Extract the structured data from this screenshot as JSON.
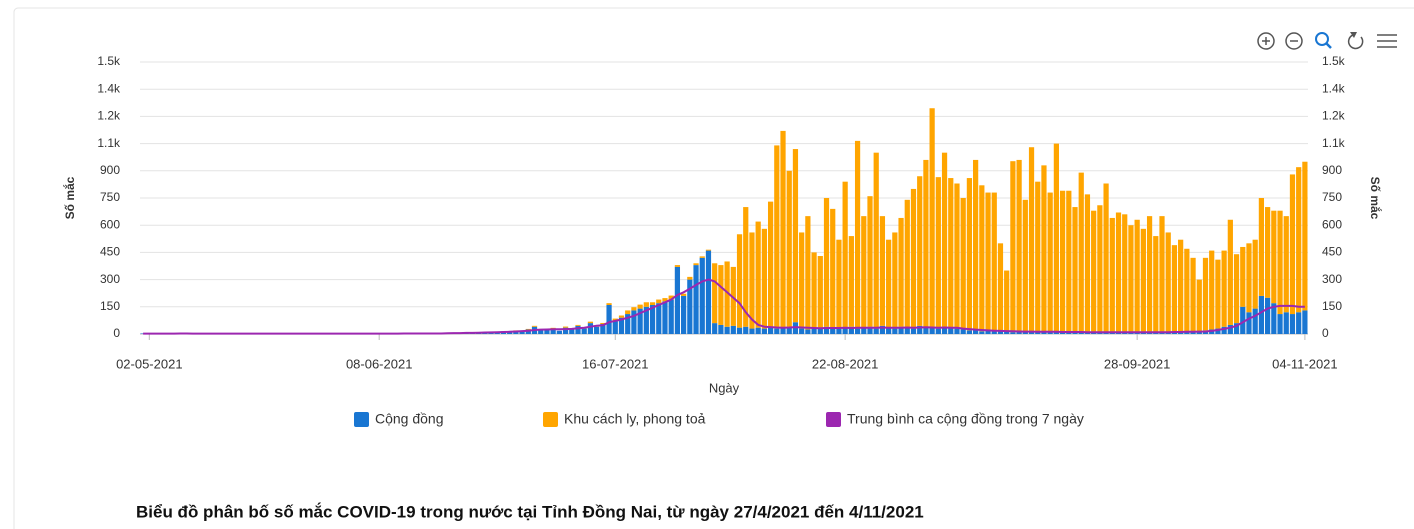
{
  "chart_data": {
    "type": "bar",
    "stacked": true,
    "caption": "Biểu đồ phân bố số mắc COVID-19 trong nước tại Tỉnh Đồng Nai, từ ngày 27/4/2021 đến 4/11/2021",
    "xlabel": "Ngày",
    "ylabel": "Số mắc",
    "y2label": "Số mắc",
    "categories": [
      null,
      "02-05-2021",
      null,
      null,
      null,
      null,
      null,
      null,
      null,
      null,
      null,
      null,
      null,
      null,
      null,
      null,
      null,
      null,
      null,
      null,
      null,
      null,
      null,
      null,
      null,
      null,
      null,
      null,
      null,
      null,
      null,
      null,
      null,
      null,
      null,
      null,
      null,
      null,
      "08-06-2021",
      null,
      null,
      null,
      null,
      null,
      null,
      null,
      null,
      null,
      null,
      null,
      null,
      null,
      null,
      null,
      null,
      null,
      null,
      null,
      null,
      null,
      null,
      null,
      null,
      null,
      null,
      null,
      null,
      null,
      null,
      null,
      null,
      null,
      null,
      null,
      null,
      null,
      "16-07-2021",
      null,
      null,
      null,
      null,
      null,
      null,
      null,
      null,
      null,
      null,
      null,
      null,
      null,
      null,
      null,
      null,
      null,
      null,
      null,
      null,
      null,
      null,
      null,
      null,
      null,
      null,
      null,
      null,
      null,
      null,
      null,
      null,
      null,
      null,
      null,
      null,
      "22-08-2021",
      null,
      null,
      null,
      null,
      null,
      null,
      null,
      null,
      null,
      null,
      null,
      null,
      null,
      null,
      null,
      null,
      null,
      null,
      null,
      null,
      null,
      null,
      null,
      null,
      null,
      null,
      null,
      null,
      null,
      null,
      null,
      null,
      null,
      null,
      null,
      null,
      null,
      null,
      null,
      null,
      null,
      null,
      null,
      null,
      null,
      null,
      "28-09-2021",
      null,
      null,
      null,
      null,
      null,
      null,
      null,
      null,
      null,
      null,
      null,
      null,
      null,
      null,
      null,
      null,
      null,
      null,
      null,
      null,
      null,
      null,
      null,
      null,
      null,
      null,
      "04-11-2021"
    ],
    "series": [
      {
        "name": "Cộng đồng",
        "color": "#1976d2",
        "values": [
          3,
          2,
          4,
          1,
          0,
          2,
          5,
          3,
          1,
          2,
          4,
          2,
          1,
          3,
          0,
          2,
          1,
          3,
          2,
          1,
          2,
          1,
          0,
          3,
          2,
          4,
          1,
          2,
          3,
          1,
          2,
          3,
          1,
          0,
          2,
          1,
          4,
          2,
          3,
          2,
          1,
          2,
          3,
          1,
          4,
          2,
          3,
          5,
          2,
          4,
          6,
          3,
          8,
          5,
          10,
          7,
          12,
          9,
          15,
          11,
          18,
          14,
          25,
          40,
          20,
          22,
          30,
          18,
          35,
          28,
          45,
          30,
          60,
          40,
          55,
          160,
          70,
          90,
          110,
          130,
          140,
          150,
          160,
          170,
          180,
          190,
          370,
          210,
          300,
          380,
          420,
          460,
          60,
          50,
          40,
          45,
          35,
          40,
          30,
          35,
          30,
          40,
          30,
          35,
          40,
          65,
          30,
          25,
          30,
          28,
          40,
          35,
          30,
          35,
          40,
          30,
          35,
          40,
          30,
          45,
          35,
          30,
          40,
          35,
          30,
          45,
          40,
          35,
          30,
          40,
          35,
          30,
          25,
          20,
          25,
          15,
          20,
          15,
          20,
          15,
          10,
          15,
          10,
          15,
          12,
          10,
          15,
          12,
          10,
          8,
          10,
          12,
          10,
          8,
          12,
          10,
          8,
          10,
          12,
          8,
          10,
          8,
          10,
          12,
          8,
          10,
          15,
          10,
          12,
          15,
          10,
          20,
          25,
          30,
          40,
          50,
          60,
          150,
          120,
          140,
          210,
          200,
          170,
          110,
          120,
          110,
          120,
          130
        ]
      },
      {
        "name": "Khu cách ly, phong toả",
        "color": "#ffa500",
        "values": [
          0,
          0,
          0,
          0,
          0,
          0,
          0,
          0,
          0,
          0,
          0,
          0,
          0,
          0,
          0,
          0,
          0,
          0,
          0,
          0,
          0,
          0,
          0,
          0,
          0,
          0,
          0,
          0,
          0,
          0,
          0,
          0,
          0,
          0,
          0,
          0,
          0,
          0,
          0,
          0,
          0,
          0,
          0,
          0,
          0,
          0,
          0,
          0,
          0,
          0,
          0,
          0,
          0,
          0,
          0,
          0,
          0,
          0,
          0,
          0,
          2,
          0,
          3,
          5,
          0,
          2,
          4,
          0,
          6,
          3,
          5,
          2,
          8,
          4,
          6,
          10,
          15,
          12,
          20,
          18,
          22,
          25,
          15,
          20,
          18,
          22,
          10,
          12,
          15,
          10,
          8,
          5,
          330,
          330,
          360,
          325,
          515,
          660,
          530,
          585,
          550,
          690,
          1010,
          1085,
          860,
          955,
          530,
          625,
          420,
          402,
          710,
          655,
          490,
          805,
          500,
          1035,
          615,
          720,
          970,
          605,
          485,
          530,
          600,
          705,
          770,
          825,
          920,
          1210,
          835,
          960,
          825,
          800,
          725,
          840,
          935,
          805,
          760,
          765,
          480,
          335,
          943,
          945,
          730,
          1015,
          828,
          920,
          765,
          1038,
          780,
          782,
          690,
          878,
          760,
          672,
          698,
          820,
          632,
          660,
          648,
          592,
          620,
          572,
          640,
          528,
          642,
          550,
          475,
          510,
          458,
          405,
          290,
          400,
          435,
          380,
          420,
          580,
          380,
          330,
          380,
          380,
          540,
          500,
          510,
          570,
          530,
          770,
          800,
          820
        ]
      },
      {
        "name": "Trung bình ca cộng đồng trong 7 ngày",
        "color": "#9c27b0",
        "type": "line",
        "axis": "y2",
        "values": [
          2,
          2,
          2,
          2,
          2,
          2,
          3,
          3,
          2,
          2,
          2,
          2,
          2,
          2,
          2,
          2,
          2,
          2,
          2,
          2,
          2,
          2,
          2,
          2,
          2,
          2,
          2,
          2,
          2,
          2,
          2,
          2,
          2,
          2,
          2,
          2,
          2,
          2,
          2,
          2,
          2,
          2,
          3,
          3,
          3,
          3,
          3,
          3,
          3,
          4,
          5,
          5,
          6,
          6,
          7,
          8,
          9,
          10,
          11,
          12,
          14,
          16,
          18,
          22,
          24,
          25,
          26,
          26,
          27,
          28,
          32,
          35,
          40,
          45,
          48,
          65,
          72,
          80,
          90,
          100,
          115,
          130,
          145,
          160,
          175,
          190,
          215,
          230,
          250,
          270,
          290,
          300,
          290,
          260,
          230,
          200,
          170,
          120,
          80,
          50,
          40,
          38,
          36,
          35,
          36,
          38,
          36,
          34,
          33,
          32,
          33,
          33,
          33,
          34,
          33,
          34,
          35,
          35,
          34,
          36,
          35,
          35,
          35,
          36,
          35,
          36,
          37,
          36,
          35,
          36,
          35,
          34,
          30,
          27,
          24,
          22,
          20,
          18,
          17,
          16,
          15,
          14,
          13,
          13,
          12,
          12,
          12,
          12,
          11,
          11,
          11,
          11,
          10,
          10,
          10,
          10,
          10,
          10,
          10,
          10,
          10,
          10,
          10,
          10,
          10,
          10,
          11,
          11,
          12,
          12,
          13,
          14,
          17,
          22,
          28,
          35,
          45,
          65,
          85,
          100,
          120,
          140,
          150,
          155,
          155,
          155,
          150,
          150
        ]
      }
    ],
    "ylim": [
      0,
      1500
    ],
    "yticks": [
      0,
      150,
      300,
      450,
      600,
      750,
      900,
      {
        "value": 1050,
        "label": "1.1k"
      },
      {
        "value": 1200,
        "label": "1.2k"
      },
      {
        "value": 1350,
        "label": "1.4k"
      },
      {
        "value": 1500,
        "label": "1.5k"
      }
    ],
    "y2lim": [
      0,
      1500
    ],
    "y2ticks": [
      0,
      150,
      300,
      450,
      600,
      750,
      900,
      {
        "value": 1050,
        "label": "1.1k"
      },
      {
        "value": 1200,
        "label": "1.2k"
      },
      {
        "value": 1350,
        "label": "1.4k"
      },
      {
        "value": 1500,
        "label": "1.5k"
      }
    ],
    "grid": true
  }
}
